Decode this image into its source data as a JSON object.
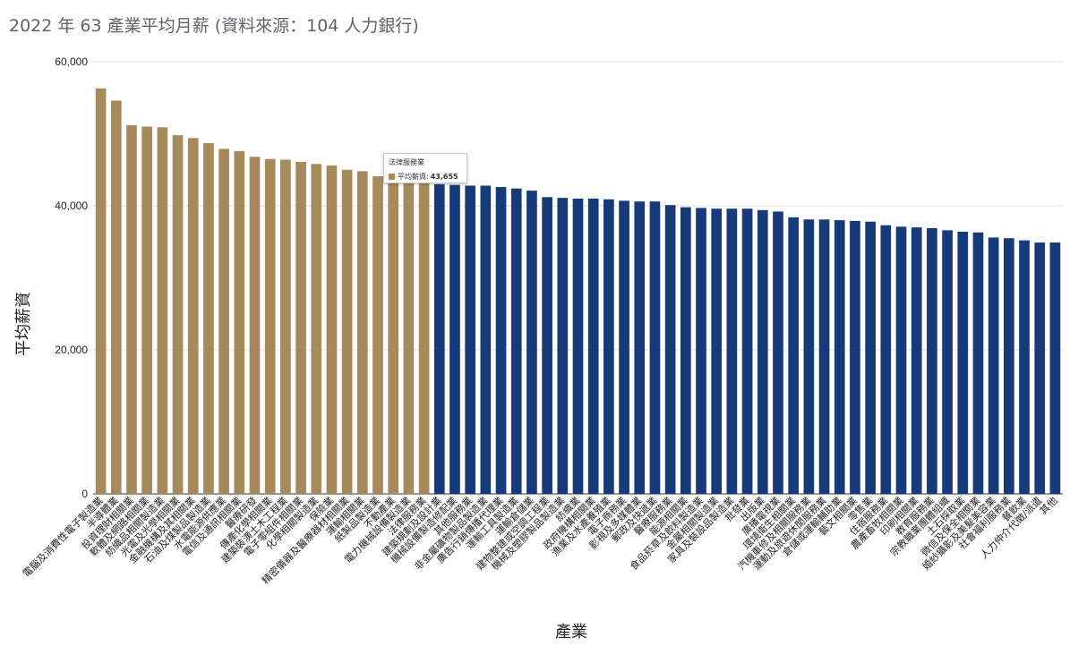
{
  "chart_data": {
    "type": "bar",
    "title": "2022 年 63 產業平均月薪  (資料來源：104 人力銀行)",
    "xlabel": "產業",
    "ylabel": "平均薪資",
    "ylim": [
      0,
      60000
    ],
    "yticks": [
      "0",
      "20,000",
      "40,000",
      "60,000"
    ],
    "grid": true,
    "highlight_color": "#a68a5b",
    "base_color": "#173b7a",
    "highlight_count": 22,
    "categories": [
      "電腦及消費性電子製造業",
      "半導體業",
      "投資理財相關業",
      "軟體及網路相關業",
      "紡織品相關製造業",
      "光電及光學相關業",
      "金融機構及其相關業",
      "石油及煤製品製造業",
      "水電能源供應業",
      "電信及通訊相關業",
      "醫療研發",
      "傳產化學相關業",
      "建築裝潢土木工程業",
      "電子零組件相關業",
      "化學相關製造業",
      "保險業",
      "精密儀器及醫療器材相關業",
      "運輸相關業",
      "紙製品製造業",
      "不動產業",
      "電力機械設備製造業",
      "法律服務業",
      "建築規劃及設計業",
      "機械設備製造修配業",
      "其他服務業",
      "非金屬礦物製品製造業",
      "廣告行銷傳播代理業",
      "運輸工具製造業",
      "運輸倉儲業",
      "建物整建或空調工程業",
      "機械及塑膠製品製造業",
      "紡織業",
      "政府機構相關業",
      "漁業及水產養殖業",
      "電子商務業",
      "影視及多媒體業",
      "郵政及快遞業",
      "醫療服務業",
      "能源相關業",
      "食品菸草及飲料製造業",
      "金屬相關製造業",
      "家具及裝設品製造業",
      "批發業",
      "出版業",
      "廣播電視業",
      "環境衛生相關業",
      "汽機車修及相關服務業",
      "運動及旅遊休閒服務業",
      "倉儲或運輸輔助業",
      "藝文相關業",
      "零售業",
      "住宿服務業",
      "農產畜牧相關業",
      "印刷相關業",
      "教育服務業",
      "宗教職業團體組織",
      "土石採取業",
      "微信及保全相關業",
      "婚紗攝影及美髮美容業",
      "社會福利服務業",
      "餐飲業",
      "人力仲介代徵/派遣",
      "其他"
    ],
    "values": [
      56300,
      54600,
      51200,
      51000,
      50900,
      49800,
      49400,
      48700,
      47900,
      47600,
      46800,
      46500,
      46400,
      46100,
      45800,
      45600,
      45000,
      44800,
      44100,
      43900,
      43700,
      43655,
      43000,
      42900,
      42800,
      42800,
      42600,
      42400,
      42100,
      41200,
      41100,
      41000,
      41000,
      40900,
      40700,
      40600,
      40600,
      40100,
      39800,
      39700,
      39600,
      39600,
      39600,
      39400,
      39200,
      38400,
      38100,
      38100,
      38000,
      37900,
      37800,
      37300,
      37100,
      37000,
      36900,
      36600,
      36400,
      36300,
      35600,
      35500,
      35200,
      34900,
      34900
    ],
    "tooltip": {
      "title": "法律服務業",
      "series_label": "平均薪資:",
      "value": "43,655",
      "category_index": 21
    }
  }
}
